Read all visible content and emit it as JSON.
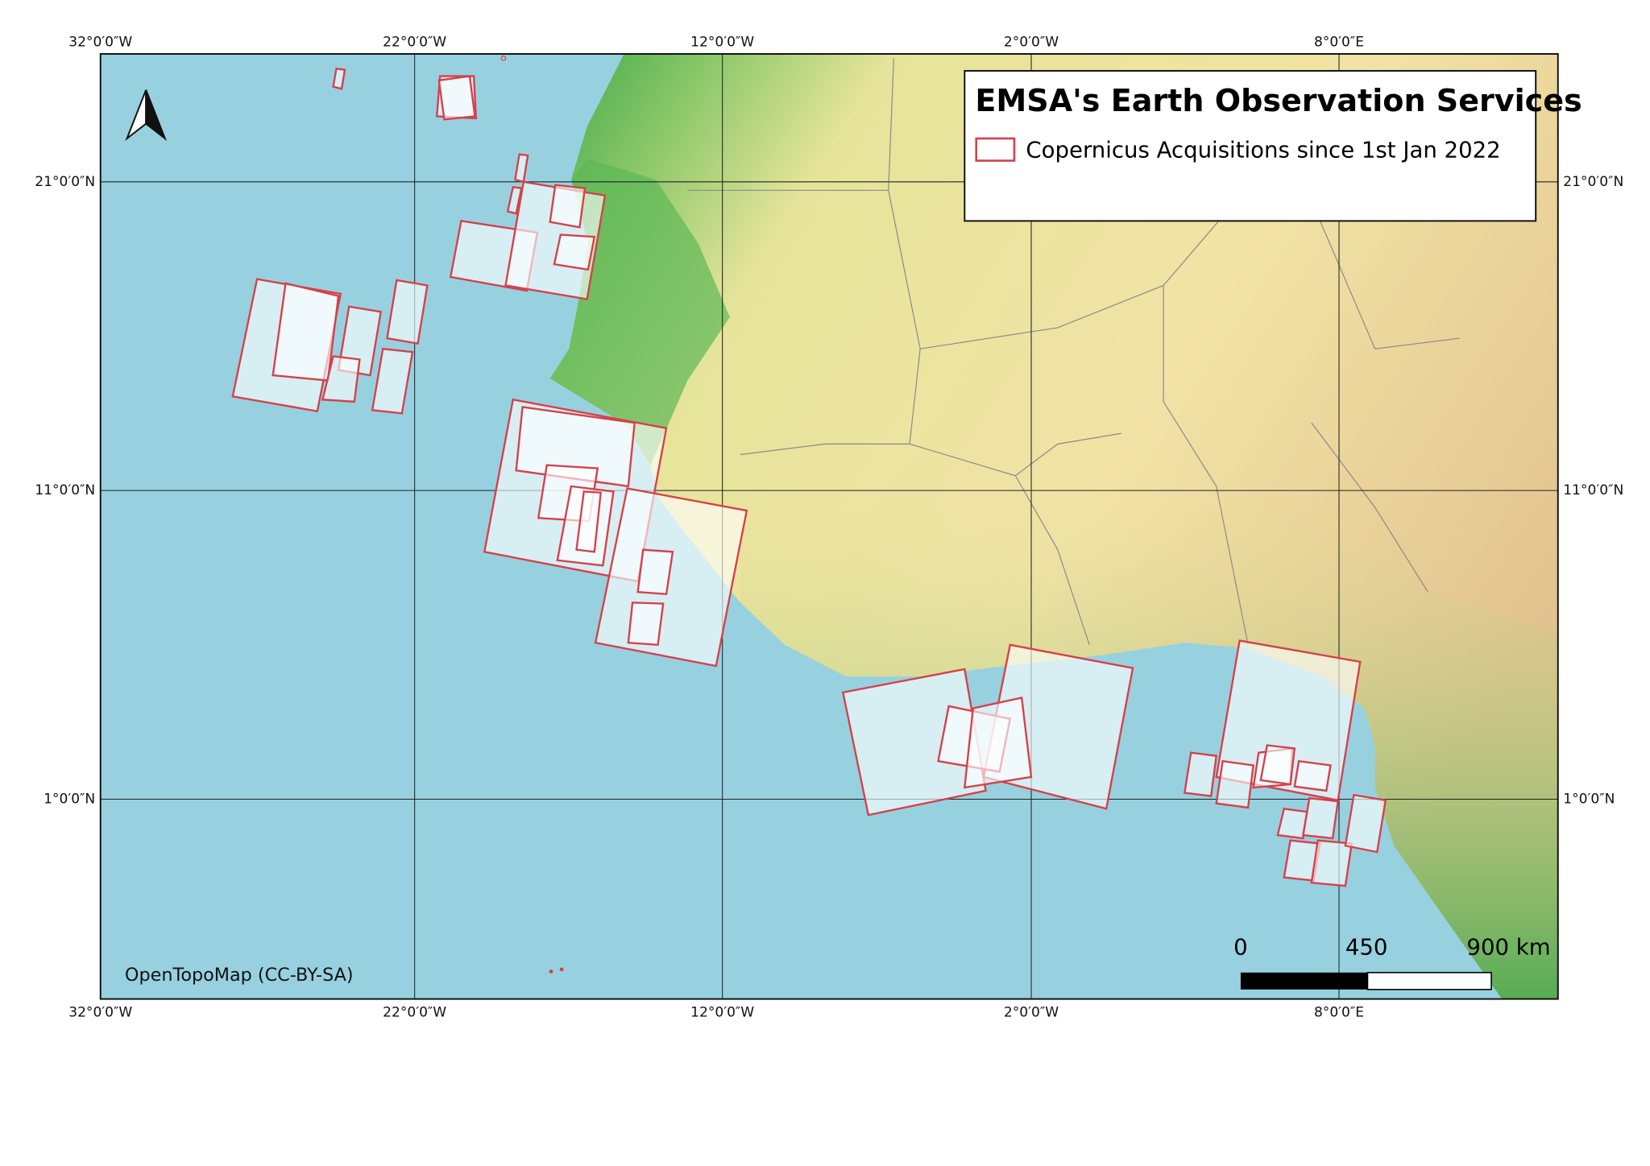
{
  "map": {
    "title": "EMSA's Earth Observation Services",
    "legend": {
      "label": "Copernicus Acquisitions since 1st Jan 2022"
    },
    "graticule": {
      "longitudes": [
        "32°0′0″W",
        "22°0′0″W",
        "12°0′0″W",
        "2°0′0″W",
        "8°0′0″E"
      ],
      "latitudes": [
        "21°0′0″N",
        "11°0′0″N",
        "1°0′0″N"
      ]
    },
    "scale_bar": {
      "labels": [
        "0",
        "450",
        "900 km"
      ]
    },
    "attribution": "OpenTopoMap (CC-BY-SA)"
  }
}
